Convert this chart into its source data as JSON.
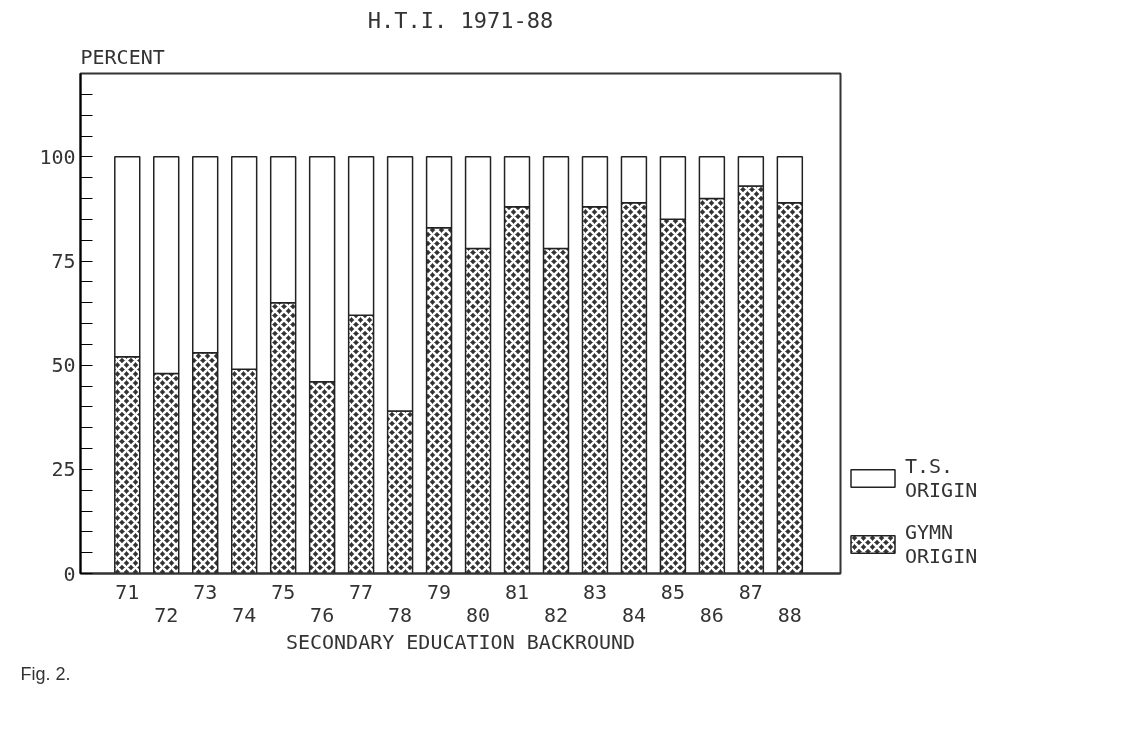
{
  "chart_data": {
    "type": "bar",
    "stacked": true,
    "title": "H.T.I. 1971-88",
    "ylabel": "PERCENT",
    "xlabel": "SECONDARY EDUCATION BACKROUND",
    "categories": [
      "71",
      "72",
      "73",
      "74",
      "75",
      "76",
      "77",
      "78",
      "79",
      "80",
      "81",
      "82",
      "83",
      "84",
      "85",
      "86",
      "87",
      "88"
    ],
    "series": [
      {
        "name": "GYMN ORIGIN",
        "color": "#333333",
        "values": [
          52,
          48,
          53,
          49,
          65,
          46,
          62,
          39,
          83,
          78,
          88,
          78,
          88,
          89,
          85,
          90,
          93,
          89
        ]
      },
      {
        "name": "T.S. ORIGIN",
        "color": "#ffffff",
        "values": [
          48,
          52,
          47,
          51,
          35,
          54,
          38,
          61,
          17,
          22,
          12,
          22,
          12,
          11,
          15,
          10,
          7,
          11
        ]
      }
    ],
    "ylim": [
      0,
      120
    ],
    "yticks": [
      0,
      {
        "value": 5,
        "label": null
      },
      {
        "value": 10,
        "label": null
      },
      {
        "value": 15,
        "label": null
      },
      {
        "value": 20,
        "label": null
      },
      25,
      {
        "value": 30,
        "label": null
      },
      {
        "value": 35,
        "label": null
      },
      {
        "value": 40,
        "label": null
      },
      {
        "value": 45,
        "label": null
      },
      50,
      {
        "value": 55,
        "label": null
      },
      {
        "value": 60,
        "label": null
      },
      {
        "value": 65,
        "label": null
      },
      {
        "value": 70,
        "label": null
      },
      75,
      {
        "value": 80,
        "label": null
      },
      {
        "value": 85,
        "label": null
      },
      {
        "value": 90,
        "label": null
      },
      {
        "value": 95,
        "label": null
      },
      100,
      {
        "value": 105,
        "label": null
      },
      {
        "value": 110,
        "label": null
      },
      {
        "value": 115,
        "label": null
      }
    ],
    "grid": false,
    "legend": "bottom right",
    "annotations": [
      "Fig. 2."
    ]
  }
}
